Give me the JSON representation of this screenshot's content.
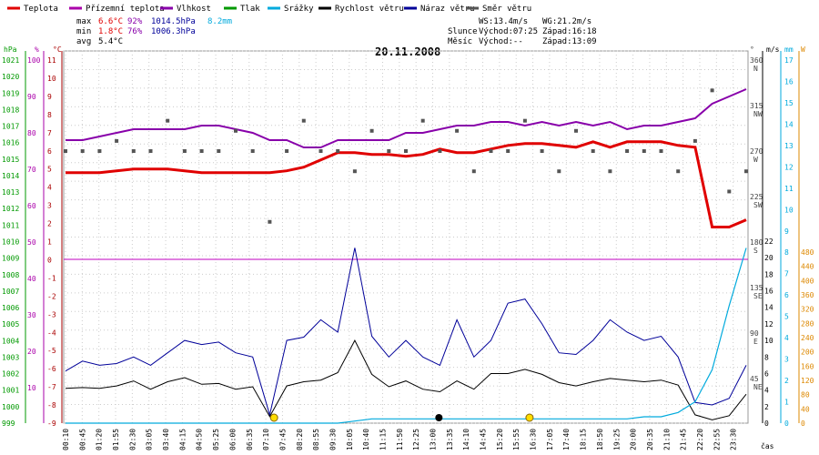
{
  "chart_data": {
    "type": "line",
    "title": "20.11.2008",
    "xlabel": "čas",
    "legend": [
      {
        "name": "Teplota",
        "color": "#e00000"
      },
      {
        "name": "Přízemní teplota",
        "color": "#aa00aa"
      },
      {
        "name": "Vlhkost",
        "color": "#8800aa"
      },
      {
        "name": "Tlak",
        "color": "#009900"
      },
      {
        "name": "Srážky",
        "color": "#00aadd"
      },
      {
        "name": "Rychlost větru",
        "color": "#000000"
      },
      {
        "name": "Náraz větru",
        "color": "#000099"
      },
      {
        "name": "Směr větru",
        "color": "#555555"
      }
    ],
    "stats": {
      "max_label": "max",
      "max_temp": "6.6°C",
      "max_hum": "92%",
      "max_press": "1014.5hPa",
      "rain": "8.2mm",
      "min_label": "min",
      "min_temp": "1.8°C",
      "min_hum": "76%",
      "min_press": "1006.3hPa",
      "avg_label": "avg",
      "avg_temp": "5.4°C"
    },
    "sun": {
      "ws": "WS:13.4m/s",
      "wg": "WG:21.2m/s",
      "slunce": "Slunce",
      "slunce_vychod": "Východ:07:25",
      "slunce_zapad": "Západ:16:18",
      "mesic": "Měsíc",
      "mesic_vychod": "Východ:--",
      "mesic_zapad": "Západ:13:09"
    },
    "left_axes": {
      "unit_hpa": "hPa",
      "unit_pct": "%",
      "unit_c": "°C",
      "hpa": [
        "1021",
        "1020",
        "1019",
        "1018",
        "1017",
        "1016",
        "1015",
        "1014",
        "1013",
        "1012",
        "1011",
        "1010",
        "1009",
        "1008",
        "1007",
        "1006",
        "1005",
        "1004",
        "1003",
        "1002",
        "1001",
        "1000",
        "999"
      ],
      "pct": [
        "100",
        "90",
        "80",
        "70",
        "60",
        "50",
        "40",
        "30",
        "20",
        "10"
      ],
      "c": [
        "11",
        "10",
        "9",
        "8",
        "7",
        "6",
        "5",
        "4",
        "3",
        "2",
        "1",
        "0",
        "-1",
        "-2",
        "-3",
        "-4",
        "-5",
        "-6",
        "-7",
        "-8",
        "-9"
      ]
    },
    "right_axes": {
      "unit_deg": "°",
      "unit_ms": "m/s",
      "unit_mm": "mm",
      "unit_w": "W",
      "deg": [
        "360",
        "315",
        "270",
        "225",
        "180",
        "135",
        "90",
        "45"
      ],
      "dir": [
        "N",
        "NW",
        "W",
        "SW",
        "S",
        "SE",
        "E",
        "NE"
      ],
      "ms": [
        "22",
        "20",
        "18",
        "16",
        "14",
        "12",
        "10",
        "8",
        "6",
        "4",
        "2",
        "0"
      ],
      "mm": [
        "17",
        "16",
        "15",
        "14",
        "13",
        "12",
        "11",
        "10",
        "9",
        "8",
        "7",
        "6",
        "5",
        "4",
        "3",
        "2",
        "1",
        "0"
      ],
      "w": [
        "480",
        "440",
        "400",
        "360",
        "320",
        "280",
        "240",
        "200",
        "160",
        "120",
        "80",
        "40",
        "0"
      ]
    },
    "x_ticks": [
      "00:10",
      "00:45",
      "01:20",
      "01:55",
      "02:30",
      "03:05",
      "03:40",
      "04:15",
      "04:50",
      "05:25",
      "06:00",
      "06:35",
      "07:10",
      "07:45",
      "08:20",
      "08:55",
      "09:30",
      "10:05",
      "10:40",
      "11:15",
      "11:50",
      "12:25",
      "13:00",
      "13:35",
      "14:10",
      "14:45",
      "15:20",
      "15:55",
      "16:30",
      "17:05",
      "17:40",
      "18:15",
      "18:50",
      "19:25",
      "20:00",
      "20:35",
      "21:10",
      "21:45",
      "22:20",
      "22:55",
      "23:30"
    ],
    "temperature_c": [
      4.8,
      4.8,
      4.8,
      4.9,
      5.0,
      5.0,
      5.0,
      4.9,
      4.8,
      4.8,
      4.8,
      4.8,
      4.8,
      4.9,
      5.1,
      5.5,
      5.9,
      5.9,
      5.8,
      5.8,
      5.7,
      5.8,
      6.1,
      5.9,
      5.9,
      6.1,
      6.3,
      6.4,
      6.4,
      6.3,
      6.2,
      6.5,
      6.2,
      6.5,
      6.5,
      6.5,
      6.3,
      6.2,
      1.8,
      1.8,
      2.2
    ],
    "humidity_pct": [
      78,
      78,
      79,
      80,
      81,
      81,
      81,
      81,
      82,
      82,
      81,
      80,
      78,
      78,
      76,
      76,
      78,
      78,
      78,
      78,
      80,
      80,
      81,
      82,
      82,
      83,
      83,
      82,
      83,
      82,
      83,
      82,
      83,
      81,
      82,
      82,
      83,
      84,
      88,
      90,
      92
    ],
    "wind_speed_ms": [
      4.2,
      4.3,
      4.2,
      4.5,
      5.1,
      4.1,
      5.0,
      5.5,
      4.7,
      4.8,
      4.1,
      4.4,
      0.8,
      4.5,
      5.0,
      5.2,
      6.1,
      10.0,
      5.9,
      4.4,
      5.1,
      4.1,
      3.8,
      5.1,
      4.1,
      6.0,
      6.0,
      6.5,
      5.9,
      4.9,
      4.5,
      5.0,
      5.4,
      5.2,
      5.0,
      5.2,
      4.6,
      1.0,
      0.4,
      0.9,
      3.5
    ],
    "wind_gust_ms": [
      6.3,
      7.5,
      7.0,
      7.2,
      8.0,
      7.0,
      8.5,
      10.0,
      9.5,
      9.8,
      8.5,
      8.0,
      1.0,
      10.0,
      10.4,
      12.5,
      11.0,
      21.2,
      10.5,
      8.0,
      10.0,
      8.0,
      7.0,
      12.5,
      8.0,
      10.0,
      14.5,
      15.0,
      12.0,
      8.5,
      8.3,
      10.0,
      12.5,
      11.0,
      10.0,
      10.5,
      8.0,
      2.5,
      2.2,
      3.0,
      7.0
    ],
    "rain_mm": [
      0,
      0,
      0,
      0,
      0,
      0,
      0,
      0,
      0,
      0,
      0,
      0,
      0,
      0,
      0,
      0,
      0,
      0.1,
      0.2,
      0.2,
      0.2,
      0.2,
      0.2,
      0.2,
      0.2,
      0.2,
      0.2,
      0.2,
      0.2,
      0.2,
      0.2,
      0.2,
      0.2,
      0.2,
      0.3,
      0.3,
      0.5,
      1.0,
      2.5,
      5.5,
      8.2
    ],
    "wind_dir_deg": [
      270,
      270,
      270,
      280,
      270,
      270,
      300,
      270,
      270,
      270,
      290,
      270,
      200,
      270,
      300,
      270,
      270,
      250,
      290,
      270,
      270,
      300,
      270,
      290,
      250,
      270,
      270,
      300,
      270,
      250,
      290,
      270,
      250,
      270,
      270,
      270,
      250,
      280,
      330,
      230,
      250
    ],
    "sun_markers": [
      "07:25",
      "16:18"
    ],
    "moon_marker": "13:09"
  }
}
